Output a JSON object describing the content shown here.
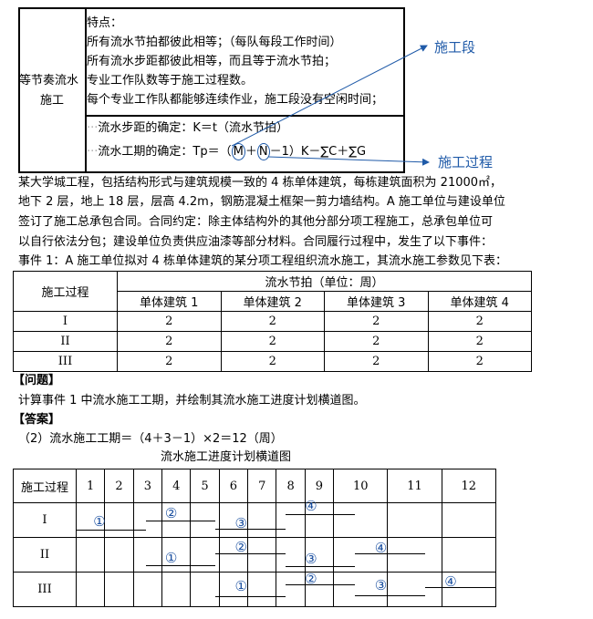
{
  "summary_table": {
    "left_label_line1": "等节奏流水",
    "left_label_line2": "施工",
    "features": [
      "特点：",
      "所有流水节拍都彼此相等；（每队每段工作时间）",
      "所有流水步距都彼此相等，而且等于流水节拍；",
      "专业工作队数等于施工过程数。",
      "每个专业工作队都能够连续作业，施工段没有空闲时间；"
    ],
    "formula_step": "流水步距的确定：K＝t（流水节拍）",
    "formula_period_prefix": "流水工期的确定：Tp＝（",
    "formula_m": "M",
    "formula_plus": "＋",
    "formula_n": "N",
    "formula_period_suffix": "－1）K－∑C＋∑G",
    "annotation_m": "施工段",
    "annotation_n": "施工过程",
    "annotation_color": "#1f5aa8"
  },
  "paragraph": [
    "某大学城工程，包括结构形式与建筑规模一致的 4 栋单体建筑，每栋建筑面积为 21000㎡，",
    "地下 2 层，地上 18 层，层高 4.2m，钢筋混凝土框架一剪力墙结构。A 施工单位与建设单位",
    "签订了施工总承包合同。合同约定：除主体结构外的其他分部分项工程施工，总承包单位可",
    "以自行依法分包；建设单位负责供应油漆等部分材料。合同履行过程中，发生了以下事件：",
    "事件 1：A 施工单位拟对 4 栋单体建筑的某分项工程组织流水施工，其流水施工参数见下表："
  ],
  "param_table": {
    "process_header": "施工过程",
    "group_header": "流水节拍（单位：周）",
    "columns": [
      "单体建筑 1",
      "单体建筑 2",
      "单体建筑 3",
      "单体建筑 4"
    ],
    "rows": [
      {
        "process": "I",
        "values": [
          "2",
          "2",
          "2",
          "2"
        ]
      },
      {
        "process": "II",
        "values": [
          "2",
          "2",
          "2",
          "2"
        ]
      },
      {
        "process": "III",
        "values": [
          "2",
          "2",
          "2",
          "2"
        ]
      }
    ]
  },
  "question_heading": "【问题】",
  "question": "计算事件 1 中流水施工工期，并绘制其流水施工进度计划横道图。",
  "answer_heading": "【答案】",
  "answer": "（2）流水施工工期＝（4＋3－1）×2＝12（周）",
  "gantt": {
    "title": "流水施工进度计划横道图",
    "process_header": "施工过程",
    "periods": [
      "1",
      "2",
      "3",
      "4",
      "5",
      "6",
      "7",
      "8",
      "9",
      "10",
      "11",
      "12"
    ],
    "rows": [
      {
        "process": "I",
        "bars": [
          {
            "label": "①",
            "start": 1,
            "end": 2
          },
          {
            "label": "②",
            "start": 3,
            "end": 4
          },
          {
            "label": "③",
            "start": 5,
            "end": 6
          },
          {
            "label": "④",
            "start": 7,
            "end": 8
          }
        ]
      },
      {
        "process": "II",
        "bars": [
          {
            "label": "①",
            "start": 3,
            "end": 4
          },
          {
            "label": "②",
            "start": 5,
            "end": 6
          },
          {
            "label": "③",
            "start": 7,
            "end": 8
          },
          {
            "label": "④",
            "start": 9,
            "end": 10
          }
        ]
      },
      {
        "process": "III",
        "bars": [
          {
            "label": "①",
            "start": 5,
            "end": 6
          },
          {
            "label": "②",
            "start": 7,
            "end": 8
          },
          {
            "label": "③",
            "start": 9,
            "end": 10
          },
          {
            "label": "④",
            "start": 11,
            "end": 12
          }
        ]
      }
    ],
    "label_color": "#1a4fa0"
  }
}
